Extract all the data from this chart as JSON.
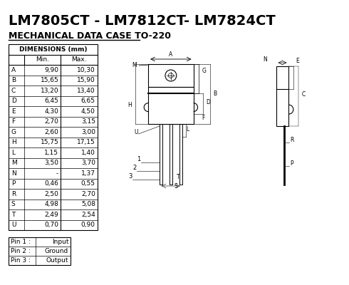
{
  "title": "LM7805CT - LM7812CT- LM7824CT",
  "subtitle": "MECHANICAL DATA CASE TO-220",
  "bg_color": "#ffffff",
  "title_fontsize": 14,
  "subtitle_fontsize": 9,
  "table_header": "DIMENSIONS (mm)",
  "col_headers": [
    "",
    "Min.",
    "Max."
  ],
  "rows": [
    [
      "A",
      "9,90",
      "10,30"
    ],
    [
      "B",
      "15,65",
      "15,90"
    ],
    [
      "C",
      "13,20",
      "13,40"
    ],
    [
      "D",
      "6,45",
      "6,65"
    ],
    [
      "E",
      "4,30",
      "4,50"
    ],
    [
      "F",
      "2,70",
      "3,15"
    ],
    [
      "G",
      "2,60",
      "3,00"
    ],
    [
      "H",
      "15,75",
      "17,15"
    ],
    [
      "L",
      "1,15",
      "1,40"
    ],
    [
      "M",
      "3,50",
      "3,70"
    ],
    [
      "N",
      "-",
      "1,37"
    ],
    [
      "P",
      "0,46",
      "0,55"
    ],
    [
      "R",
      "2,50",
      "2,70"
    ],
    [
      "S",
      "4,98",
      "5,08"
    ],
    [
      "T",
      "2,49",
      "2,54"
    ],
    [
      "U",
      "0,70",
      "0,90"
    ]
  ],
  "pin_rows": [
    [
      "Pin 1 :",
      "Input"
    ],
    [
      "Pin 2 :",
      "Ground"
    ],
    [
      "Pin 3 :",
      "Output"
    ]
  ],
  "text_color": "#000000",
  "line_color": "#000000"
}
